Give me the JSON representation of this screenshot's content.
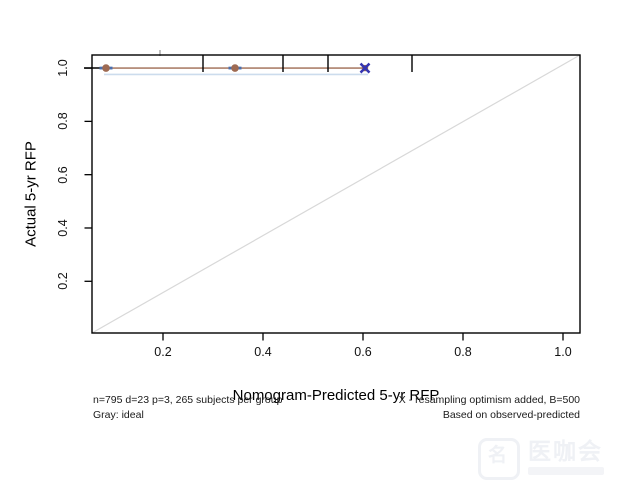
{
  "chart_data": {
    "type": "scatter",
    "title": "",
    "xlabel": "Nomogram-Predicted 5-yr RFP",
    "ylabel": "Actual 5-yr RFP",
    "x_ticks": [
      0.2,
      0.4,
      0.6,
      0.8,
      1.0
    ],
    "y_ticks": [
      0.2,
      0.4,
      0.6,
      0.8,
      1.0
    ],
    "x_range": [
      0.058,
      1.034
    ],
    "y_range": [
      0.006,
      1.049
    ],
    "grid": false,
    "ideal_line": {
      "label": "Gray: ideal",
      "color": "#d8d8d8",
      "from": [
        0.058,
        0.006
      ],
      "to": [
        1.034,
        1.049
      ]
    },
    "calibration": {
      "color": "#9e6a52",
      "points": [
        {
          "predicted": 0.086,
          "actual": 1.0,
          "marker": "dot"
        },
        {
          "predicted": 0.344,
          "actual": 1.0,
          "marker": "dot"
        },
        {
          "predicted": 0.604,
          "actual": 1.0,
          "marker": "x"
        }
      ]
    },
    "optimism_line": {
      "color": "#ccdced",
      "x_from": 0.082,
      "x_to": 0.61,
      "y": 0.976
    },
    "axis_stub": {
      "color": "#000000",
      "x_from": 0.042,
      "x_to": 0.08,
      "y": 1.0
    },
    "rug_ticks": {
      "color": "#000000",
      "values": [
        0.28,
        0.44,
        0.53,
        0.698
      ],
      "minor": [
        0.194
      ]
    },
    "marker_colors": {
      "dot_fill": "#9e6a52",
      "dash": "#4a6fae",
      "x_color": "#3535b2"
    },
    "legend_position": "none"
  },
  "annotations": {
    "left_line1": "n=795 d=23 p=3, 265 subjects per group",
    "left_line2": "Gray: ideal",
    "right_line1": "X - resampling optimism added, B=500",
    "right_line2": "Based on observed-predicted"
  },
  "watermark": {
    "text": "医咖会",
    "glyph": "名"
  }
}
